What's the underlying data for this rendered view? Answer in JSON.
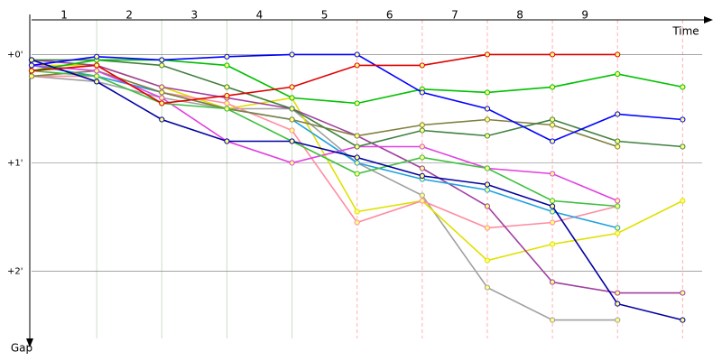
{
  "chart_data": {
    "type": "line",
    "x_label": "Time",
    "y_label": "Gap",
    "x": [
      0,
      1,
      2,
      3,
      4,
      5,
      6,
      7,
      8,
      9,
      10
    ],
    "xlim": [
      0,
      10.3
    ],
    "xticks": [
      {
        "value": 0.5,
        "label": "1"
      },
      {
        "value": 1.5,
        "label": "2"
      },
      {
        "value": 2.5,
        "label": "3"
      },
      {
        "value": 3.5,
        "label": "4"
      },
      {
        "value": 4.5,
        "label": "5"
      },
      {
        "value": 5.5,
        "label": "6"
      },
      {
        "value": 6.5,
        "label": "7"
      },
      {
        "value": 7.5,
        "label": "8"
      },
      {
        "value": 8.5,
        "label": "9"
      }
    ],
    "ylim": [
      -0.32,
      2.62
    ],
    "yticks": [
      {
        "value": 0,
        "label": "+0'"
      },
      {
        "value": 1,
        "label": "+1'"
      },
      {
        "value": 2,
        "label": "+2'"
      }
    ],
    "grid": true,
    "series": [
      {
        "color": "#a0a0a0",
        "values": [
          0.2,
          0.25,
          0.4,
          0.5,
          0.5,
          1.0,
          1.3,
          2.15,
          2.45,
          2.45,
          null
        ]
      },
      {
        "color": "#e0e000",
        "values": [
          0.1,
          0.1,
          0.3,
          0.5,
          0.4,
          1.45,
          1.35,
          1.9,
          1.75,
          1.65,
          1.35
        ]
      },
      {
        "color": "#ff8ca0",
        "values": [
          0.2,
          0.2,
          0.35,
          0.45,
          0.7,
          1.55,
          1.35,
          1.6,
          1.55,
          1.4,
          null
        ]
      },
      {
        "color": "#a040a0",
        "values": [
          0.05,
          0.1,
          0.3,
          0.4,
          0.5,
          0.75,
          1.05,
          1.4,
          2.1,
          2.2,
          2.2
        ]
      },
      {
        "color": "#20a0e0",
        "values": [
          0.1,
          0.2,
          0.35,
          0.5,
          0.6,
          1.0,
          1.15,
          1.25,
          1.45,
          1.6,
          null
        ]
      },
      {
        "color": "#808040",
        "values": [
          0.2,
          0.15,
          0.35,
          0.5,
          0.6,
          0.75,
          0.65,
          0.6,
          0.65,
          0.85,
          null
        ]
      },
      {
        "color": "#e040e0",
        "values": [
          0.1,
          0.15,
          0.4,
          0.8,
          1.0,
          0.85,
          0.85,
          1.05,
          1.1,
          1.35,
          null
        ]
      },
      {
        "color": "#408040",
        "values": [
          0.05,
          0.05,
          0.1,
          0.3,
          0.5,
          0.85,
          0.7,
          0.75,
          0.6,
          0.8,
          0.85
        ]
      },
      {
        "color": "#40c040",
        "values": [
          0.15,
          0.2,
          0.45,
          0.5,
          0.8,
          1.1,
          0.95,
          1.05,
          1.35,
          1.4,
          null
        ]
      },
      {
        "color": "#00c000",
        "values": [
          0.15,
          0.05,
          0.05,
          0.1,
          0.4,
          0.45,
          0.32,
          0.35,
          0.3,
          0.18,
          0.3
        ]
      },
      {
        "color": "#0000ff",
        "values": [
          0.1,
          0.02,
          0.05,
          0.02,
          0,
          0,
          0.35,
          0.5,
          0.8,
          0.55,
          0.6
        ]
      },
      {
        "color": "#0000a0",
        "values": [
          0.05,
          0.25,
          0.6,
          0.8,
          0.8,
          0.95,
          1.12,
          1.2,
          1.4,
          2.3,
          2.45
        ]
      },
      {
        "color": "#e00000",
        "values": [
          0.15,
          0.1,
          0.45,
          0.38,
          0.3,
          0.1,
          0.1,
          0,
          0,
          0,
          null
        ]
      }
    ]
  }
}
